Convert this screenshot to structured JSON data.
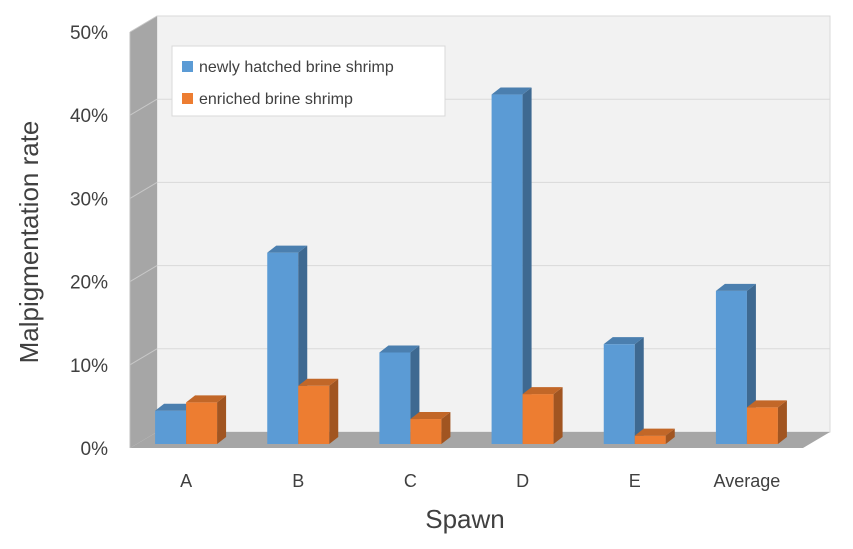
{
  "chart_data": {
    "type": "bar",
    "style": "3d-clustered-column",
    "xlabel": "Spawn",
    "ylabel": "Malpigmentation rate",
    "categories": [
      "A",
      "B",
      "C",
      "D",
      "E",
      "Average"
    ],
    "ylim": [
      0,
      50
    ],
    "yticks": [
      0,
      10,
      20,
      30,
      40,
      50
    ],
    "ytick_labels": [
      "0%",
      "10%",
      "20%",
      "30%",
      "40%",
      "50%"
    ],
    "grid": true,
    "legend_position": "top-left",
    "series": [
      {
        "name": "newly hatched brine shrimp",
        "color": "#5b9bd5",
        "values": [
          4,
          23,
          11,
          42,
          12,
          18.4
        ]
      },
      {
        "name": "enriched brine shrimp",
        "color": "#ed7d31",
        "values": [
          5,
          7,
          3,
          6,
          1,
          4.4
        ]
      }
    ]
  }
}
